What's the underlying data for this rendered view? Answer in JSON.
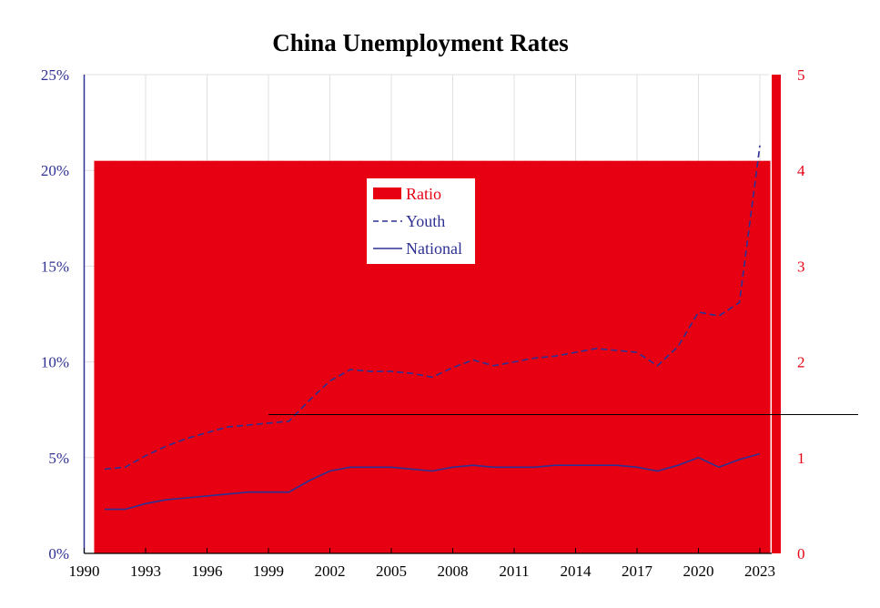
{
  "chart_data": {
    "type": "bar+line",
    "title": "China Unemployment Rates",
    "x_ticks": [
      "1990",
      "1993",
      "1996",
      "1999",
      "2002",
      "2005",
      "2008",
      "2011",
      "2014",
      "2017",
      "2020",
      "2023"
    ],
    "xlim": [
      1990,
      2024
    ],
    "y_left": {
      "ticks": [
        "0%",
        "5%",
        "10%",
        "15%",
        "20%",
        "25%"
      ],
      "range": [
        0,
        25
      ]
    },
    "y_right": {
      "ticks": [
        "0",
        "1",
        "2",
        "3",
        "4",
        "5"
      ],
      "range": [
        0,
        5
      ]
    },
    "legend": {
      "placement": "upper-center",
      "entries": [
        "Ratio",
        "Youth",
        "National"
      ]
    },
    "colors": {
      "ratio": "#e60012",
      "youth": "#2e3192",
      "national": "#2e3192",
      "grid": "#e0e0e0"
    },
    "years": [
      1991,
      1992,
      1993,
      1994,
      1995,
      1996,
      1997,
      1998,
      1999,
      2000,
      2001,
      2002,
      2003,
      2004,
      2005,
      2006,
      2007,
      2008,
      2009,
      2010,
      2011,
      2012,
      2013,
      2014,
      2015,
      2016,
      2017,
      2018,
      2019,
      2020,
      2021,
      2022,
      2023
    ],
    "series": [
      {
        "name": "Ratio",
        "axis": "right",
        "kind": "bar",
        "values": [
          4.1,
          4.1,
          4.1,
          4.1,
          4.1,
          4.1,
          4.1,
          4.1,
          4.1,
          4.1,
          4.1,
          4.1,
          4.1,
          4.1,
          4.1,
          4.1,
          4.1,
          4.1,
          4.1,
          4.1,
          4.1,
          4.1,
          4.1,
          4.1,
          4.1,
          4.1,
          4.1,
          4.1,
          4.1,
          4.1,
          4.1,
          4.1,
          4.1
        ]
      },
      {
        "name": "Youth",
        "axis": "left",
        "kind": "dashed-line",
        "values": [
          4.4,
          4.5,
          5.1,
          5.6,
          6.0,
          6.3,
          6.6,
          6.7,
          6.8,
          6.9,
          8.0,
          9.0,
          9.6,
          9.5,
          9.5,
          9.4,
          9.2,
          9.7,
          10.1,
          9.8,
          10.0,
          10.2,
          10.3,
          10.5,
          10.7,
          10.6,
          10.5,
          9.8,
          10.8,
          12.6,
          12.4,
          13.1,
          21.3
        ]
      },
      {
        "name": "National",
        "axis": "left",
        "kind": "line",
        "values": [
          2.3,
          2.3,
          2.6,
          2.8,
          2.9,
          3.0,
          3.1,
          3.2,
          3.2,
          3.2,
          3.8,
          4.3,
          4.5,
          4.5,
          4.5,
          4.4,
          4.3,
          4.5,
          4.6,
          4.5,
          4.5,
          4.5,
          4.6,
          4.6,
          4.6,
          4.6,
          4.5,
          4.3,
          4.6,
          5.0,
          4.5,
          4.9,
          5.2
        ]
      }
    ],
    "extra_ratio_bar": {
      "x": 2023.8,
      "value": 5
    },
    "reference_line": {
      "value_right_axis": 1.45,
      "x_from": 1999
    }
  }
}
